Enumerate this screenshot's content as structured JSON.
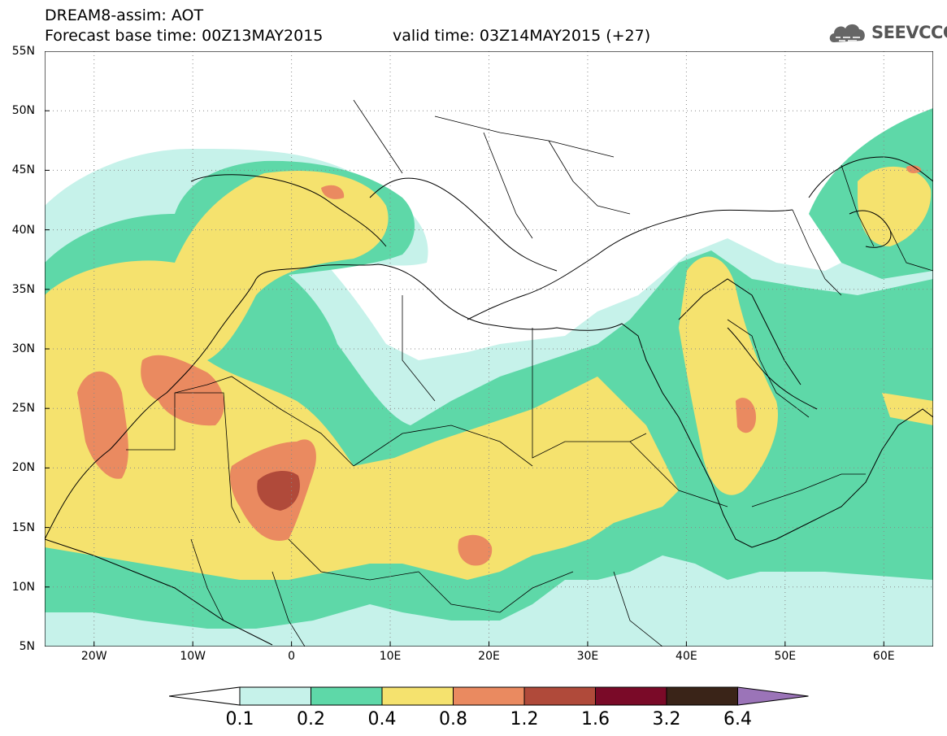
{
  "header": {
    "title_line1": "DREAM8-assim: AOT",
    "forecast_base": "Forecast base time: 00Z13MAY2015",
    "valid_time": "valid time: 03Z14MAY2015 (+27)",
    "logo_text": "SEEVCCC",
    "logo_icon": "cloud-icon"
  },
  "map": {
    "lon_range": [
      -25,
      65
    ],
    "lat_range": [
      5,
      55
    ],
    "lat_ticks": [
      "55N",
      "50N",
      "45N",
      "40N",
      "35N",
      "30N",
      "25N",
      "20N",
      "15N",
      "10N",
      "5N"
    ],
    "lon_ticks": [
      "20W",
      "10W",
      "0",
      "10E",
      "20E",
      "30E",
      "40E",
      "50E",
      "60E"
    ],
    "grid": "dotted",
    "field": "aerosol optical thickness"
  },
  "colorbar": {
    "labels": [
      "0.1",
      "0.2",
      "0.4",
      "0.8",
      "1.2",
      "1.6",
      "3.2",
      "6.4"
    ],
    "colors": [
      "#c6f2ea",
      "#5ed8a8",
      "#f5e26e",
      "#ea8a60",
      "#b04a3a",
      "#7a0a28",
      "#3a2418",
      "#9b74b8"
    ]
  }
}
